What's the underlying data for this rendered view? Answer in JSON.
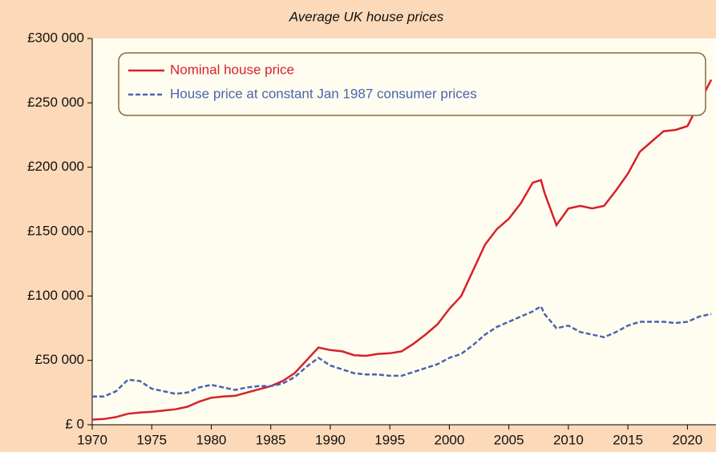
{
  "chart_data": {
    "type": "line",
    "title": "Average UK house prices",
    "x": [
      1970,
      1971,
      1972,
      1973,
      1974,
      1975,
      1976,
      1977,
      1978,
      1979,
      1980,
      1981,
      1982,
      1983,
      1984,
      1985,
      1986,
      1987,
      1988,
      1989,
      1990,
      1991,
      1992,
      1993,
      1994,
      1995,
      1996,
      1997,
      1998,
      1999,
      2000,
      2001,
      2002,
      2003,
      2004,
      2005,
      2006,
      2007,
      2007.7,
      2008,
      2009,
      2010,
      2011,
      2012,
      2013,
      2014,
      2015,
      2016,
      2017,
      2018,
      2019,
      2020,
      2021,
      2022
    ],
    "series": [
      {
        "name": "Nominal house price",
        "color": "#d7202a",
        "dash": false,
        "values": [
          4000,
          4500,
          6000,
          8500,
          9500,
          10000,
          11000,
          12000,
          14000,
          18000,
          21000,
          22000,
          22500,
          25000,
          27500,
          30000,
          34000,
          40000,
          50000,
          60000,
          58000,
          57000,
          54000,
          53500,
          55000,
          55500,
          57000,
          63000,
          70000,
          78000,
          90000,
          100000,
          120000,
          140000,
          152000,
          160000,
          172000,
          188000,
          190000,
          180000,
          155000,
          168000,
          170000,
          168000,
          170000,
          182000,
          195000,
          212000,
          220000,
          228000,
          229000,
          232000,
          250000,
          268000
        ]
      },
      {
        "name": "House price at constant Jan 1987 consumer prices",
        "color": "#4a63b0",
        "dash": true,
        "values": [
          22000,
          22000,
          26000,
          35000,
          34000,
          28000,
          26000,
          24000,
          25000,
          29000,
          31000,
          29000,
          27000,
          29000,
          30000,
          30000,
          32000,
          37000,
          45000,
          52000,
          46000,
          43000,
          40000,
          39000,
          39000,
          38000,
          38000,
          41000,
          44000,
          47000,
          52000,
          55000,
          62000,
          70000,
          76000,
          80000,
          84000,
          88000,
          92000,
          86000,
          75000,
          77000,
          72000,
          70000,
          68000,
          72000,
          77000,
          80000,
          80000,
          80000,
          79000,
          80000,
          84000,
          86000
        ]
      }
    ],
    "xlim": [
      1970,
      2022.4
    ],
    "xticks": [
      1970,
      1975,
      1980,
      1985,
      1990,
      1995,
      2000,
      2005,
      2010,
      2015,
      2020
    ],
    "ylim": [
      0,
      300000
    ],
    "yticks": [
      {
        "value": 0,
        "label": "£ 0"
      },
      {
        "value": 50000,
        "label": "£50 000"
      },
      {
        "value": 100000,
        "label": "£100 000"
      },
      {
        "value": 150000,
        "label": "£150 000"
      },
      {
        "value": 200000,
        "label": "£200 000"
      },
      {
        "value": 250000,
        "label": "£250 000"
      },
      {
        "value": 300000,
        "label": "£300 000"
      }
    ]
  }
}
